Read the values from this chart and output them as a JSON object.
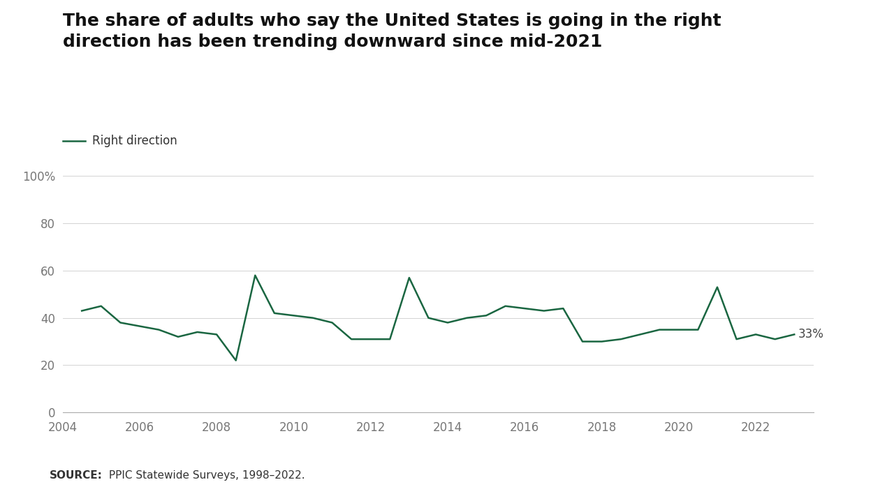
{
  "title": "The share of adults who say the United States is going in the right\ndirection has been trending downward since mid-2021",
  "line_label": "Right direction",
  "line_color": "#1a6641",
  "background_color": "#ffffff",
  "footer_bg_color": "#e8e8e8",
  "source_bold": "SOURCE:",
  "source_rest": " PPIC Statewide Surveys, 1998–2022.",
  "last_value_label": "33%",
  "x_values": [
    2004.5,
    2005.0,
    2005.5,
    2006.5,
    2007.0,
    2007.5,
    2008.0,
    2008.5,
    2009.0,
    2009.5,
    2010.5,
    2011.0,
    2011.5,
    2012.0,
    2012.5,
    2013.0,
    2013.5,
    2014.0,
    2014.5,
    2015.0,
    2015.5,
    2016.0,
    2016.5,
    2017.0,
    2017.5,
    2018.0,
    2018.5,
    2019.0,
    2019.5,
    2020.0,
    2020.5,
    2021.0,
    2021.5,
    2022.0,
    2022.5,
    2023.0
  ],
  "y_values": [
    43,
    45,
    38,
    35,
    32,
    34,
    33,
    22,
    58,
    42,
    40,
    38,
    31,
    31,
    31,
    57,
    40,
    38,
    40,
    41,
    45,
    44,
    43,
    44,
    30,
    30,
    31,
    33,
    35,
    35,
    35,
    53,
    31,
    33,
    31,
    33
  ],
  "ylim": [
    0,
    100
  ],
  "xlim": [
    2004,
    2023.5
  ],
  "yticks": [
    0,
    20,
    40,
    60,
    80,
    100
  ],
  "ytick_labels": [
    "0",
    "20",
    "40",
    "60",
    "80",
    "100%"
  ],
  "xticks": [
    2004,
    2006,
    2008,
    2010,
    2012,
    2014,
    2016,
    2018,
    2020,
    2022
  ],
  "xtick_labels": [
    "2004",
    "2006",
    "2008",
    "2010",
    "2012",
    "2014",
    "2016",
    "2018",
    "2020",
    "2022"
  ]
}
